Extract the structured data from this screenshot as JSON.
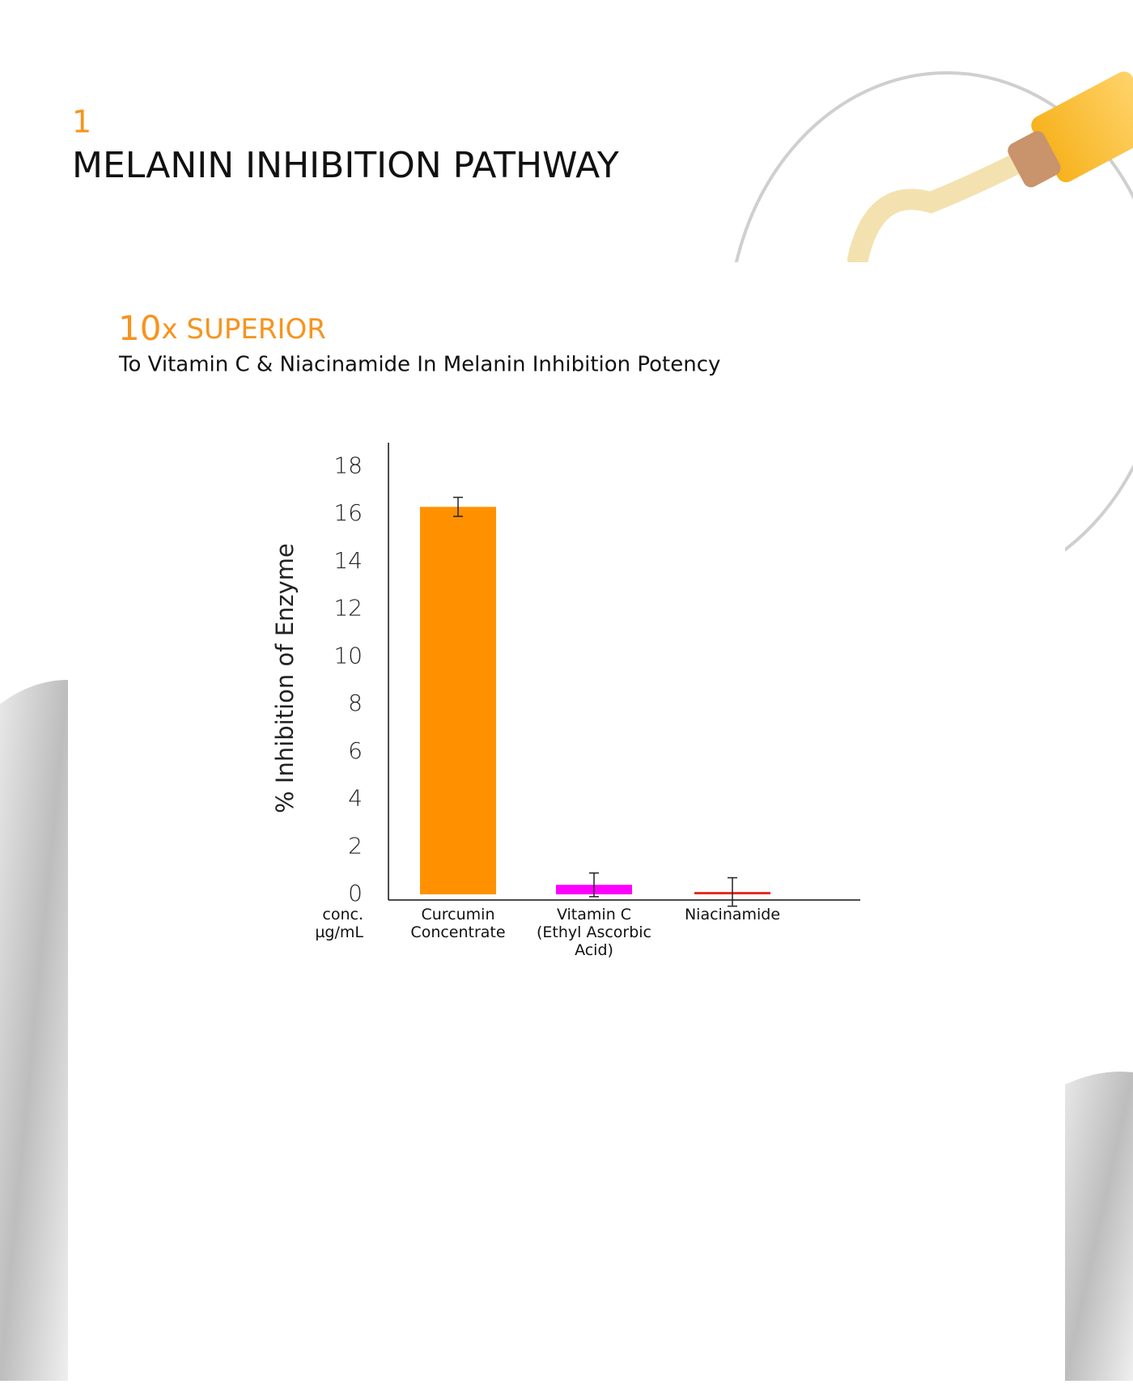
{
  "section": {
    "number": "1",
    "title": "MELANIN INHIBITION PATHWAY"
  },
  "headline": {
    "number": "10",
    "text": "x SUPERIOR",
    "subtitle": "To Vitamin C & Niacinamide In Melanin Inhibition Potency"
  },
  "chart_data": {
    "type": "bar",
    "y_label": "% Inhibition of Enzyme",
    "x_label": "conc.\nµg/mL",
    "categories": [
      "Curcumin\nConcentrate",
      "Vitamin C\n(Ethyl Ascorbic\nAcid)",
      "Niacinamide"
    ],
    "values": [
      16.3,
      0.4,
      0.1
    ],
    "errors": [
      0.4,
      0.5,
      0.6
    ],
    "colors": [
      "#ff9100",
      "#ff00ff",
      "#e8291c"
    ],
    "ylim": [
      0,
      19
    ],
    "yticks": [
      0,
      2,
      4,
      6,
      8,
      10,
      12,
      14,
      16,
      18
    ],
    "grid": false
  }
}
